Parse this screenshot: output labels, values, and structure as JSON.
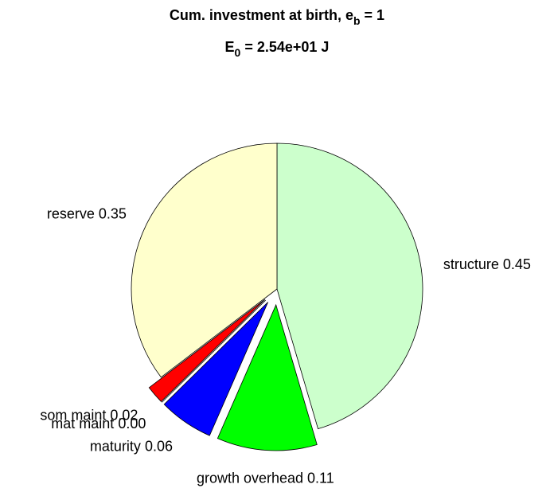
{
  "chart_data": {
    "type": "pie",
    "title": {
      "text": "Cum. investment at birth, e",
      "sub": "b",
      "after": " = 1"
    },
    "subtitle": {
      "text": "E",
      "sub": "0",
      "after": " = 2.54e+01 J"
    },
    "categories": [
      "structure",
      "growth overhead",
      "maturity",
      "mat maint",
      "som maint",
      "reserve"
    ],
    "values": [
      0.45,
      0.11,
      0.06,
      0.0,
      0.02,
      0.35
    ],
    "value_labels": [
      "0.45",
      "0.11",
      "0.06",
      "0.00",
      "0.02",
      "0.35"
    ],
    "colors": [
      "#ccffcc",
      "#00ff00",
      "#0000ff",
      "#00ffff",
      "#ff0000",
      "#ffffcc"
    ],
    "explode": [
      false,
      true,
      true,
      true,
      true,
      false
    ]
  }
}
